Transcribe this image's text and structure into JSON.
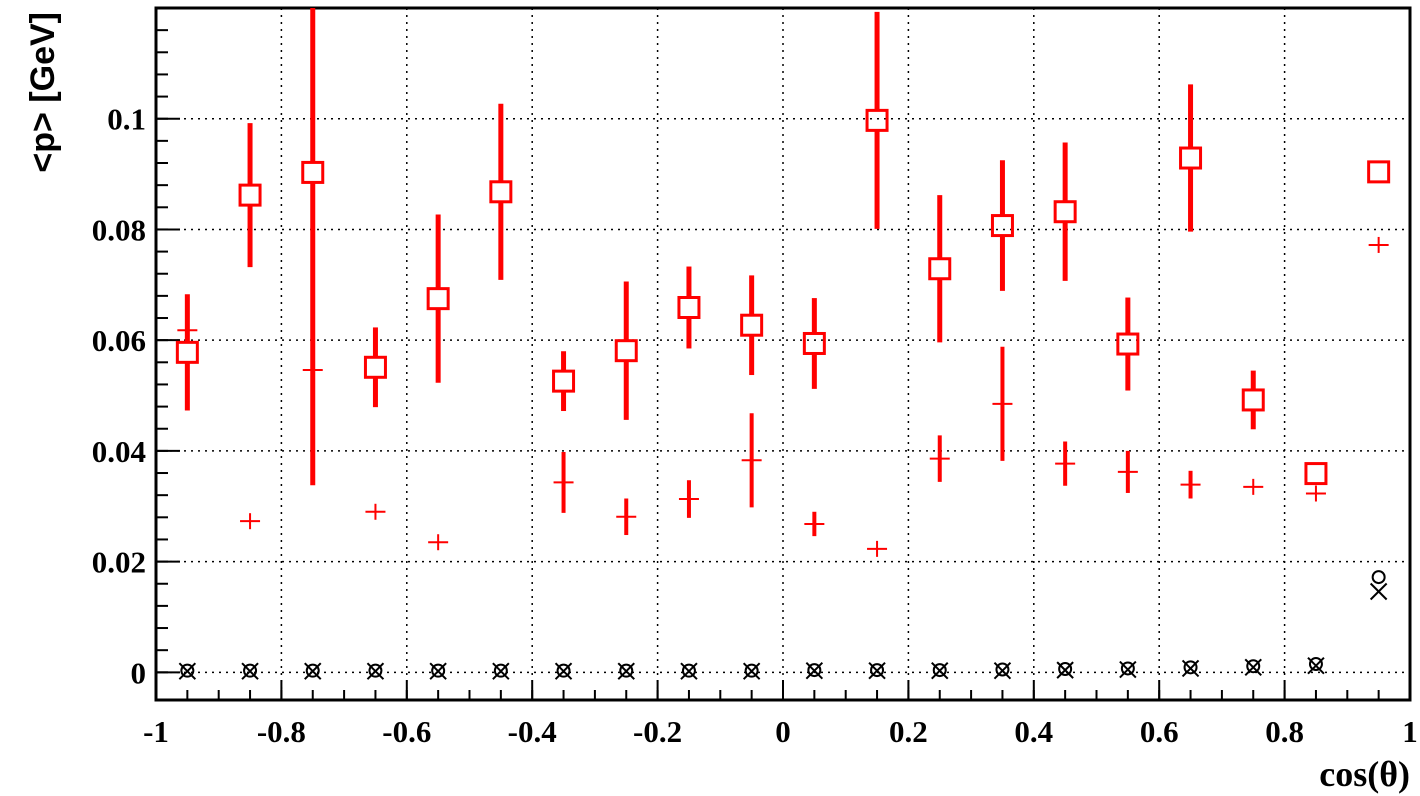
{
  "chart_data": {
    "type": "scatter",
    "xlabel": "cos(θ)",
    "ylabel": "<p> [GeV]",
    "xlim": [
      -1,
      1
    ],
    "ylim": [
      -0.005,
      0.12
    ],
    "grid": true,
    "x_ticks": [
      "-1",
      "-0.8",
      "-0.6",
      "-0.4",
      "-0.2",
      "0",
      "0.2",
      "0.4",
      "0.6",
      "0.8",
      "1"
    ],
    "y_ticks": [
      "0",
      "0.02",
      "0.04",
      "0.06",
      "0.08",
      "0.1"
    ],
    "colors": {
      "red": "#ff0000",
      "black": "#000000"
    },
    "series": [
      {
        "marker": "open-square",
        "color": "#ff0000",
        "x": [
          -0.95,
          -0.85,
          -0.75,
          -0.65,
          -0.55,
          -0.45,
          -0.35,
          -0.25,
          -0.15,
          -0.05,
          0.05,
          0.15,
          0.25,
          0.35,
          0.45,
          0.55,
          0.65,
          0.75,
          0.85,
          0.95
        ],
        "y": [
          0.0578,
          0.0862,
          0.0903,
          0.0551,
          0.0675,
          0.0868,
          0.0526,
          0.0581,
          0.0659,
          0.0627,
          0.0594,
          0.0997,
          0.0729,
          0.0807,
          0.0832,
          0.0593,
          0.0929,
          0.0492,
          0.0359,
          0.0904
        ],
        "err": [
          0.0105,
          0.013,
          0.0565,
          0.0072,
          0.0152,
          0.0159,
          0.0054,
          0.0125,
          0.0074,
          0.009,
          0.0082,
          0.0196,
          0.0133,
          0.0118,
          0.0125,
          0.0084,
          0.0133,
          0.0053,
          0,
          0
        ]
      },
      {
        "marker": "plus",
        "color": "#ff0000",
        "x": [
          -0.95,
          -0.85,
          -0.75,
          -0.65,
          -0.55,
          -0.45,
          -0.35,
          -0.25,
          -0.15,
          -0.05,
          0.05,
          0.15,
          0.25,
          0.35,
          0.45,
          0.55,
          0.65,
          0.75,
          0.85,
          0.95
        ],
        "y": [
          0.0618,
          0.0273,
          0.0546,
          0.029,
          0.0235,
          null,
          0.0343,
          0.0281,
          0.0313,
          0.0383,
          0.0268,
          0.0223,
          0.0386,
          0.0485,
          0.0377,
          0.0362,
          0.0339,
          0.0335,
          0.0323,
          0.0772
        ],
        "err": [
          0,
          0,
          0.0046,
          0,
          0,
          0,
          0.0055,
          0.0033,
          0.0034,
          0.0085,
          0.0022,
          0,
          0.0042,
          0.0103,
          0.004,
          0.0038,
          0.0025,
          0,
          0,
          0
        ]
      },
      {
        "marker": "open-circle",
        "color": "#000000",
        "x": [
          -0.95,
          -0.85,
          -0.75,
          -0.65,
          -0.55,
          -0.45,
          -0.35,
          -0.25,
          -0.15,
          -0.05,
          0.05,
          0.15,
          0.25,
          0.35,
          0.45,
          0.55,
          0.65,
          0.75,
          0.85,
          0.95
        ],
        "y": [
          0.0003,
          0.0003,
          0.0003,
          0.0003,
          0.0003,
          0.0003,
          0.0003,
          0.0003,
          0.0003,
          0.0003,
          0.0004,
          0.0004,
          0.0004,
          0.0005,
          0.0006,
          0.0007,
          0.0009,
          0.0011,
          0.0015,
          0.0172
        ]
      },
      {
        "marker": "cross",
        "color": "#000000",
        "x": [
          -0.95,
          -0.85,
          -0.75,
          -0.65,
          -0.55,
          -0.45,
          -0.35,
          -0.25,
          -0.15,
          -0.05,
          0.05,
          0.15,
          0.25,
          0.35,
          0.45,
          0.55,
          0.65,
          0.75,
          0.85,
          0.95
        ],
        "y": [
          0.0002,
          0.0002,
          0.0002,
          0.0002,
          0.0002,
          0.0002,
          0.0002,
          0.0002,
          0.0002,
          0.0002,
          0.0003,
          0.0003,
          0.0003,
          0.0003,
          0.0004,
          0.0005,
          0.0007,
          0.0009,
          0.0012,
          0.0146
        ]
      }
    ]
  }
}
